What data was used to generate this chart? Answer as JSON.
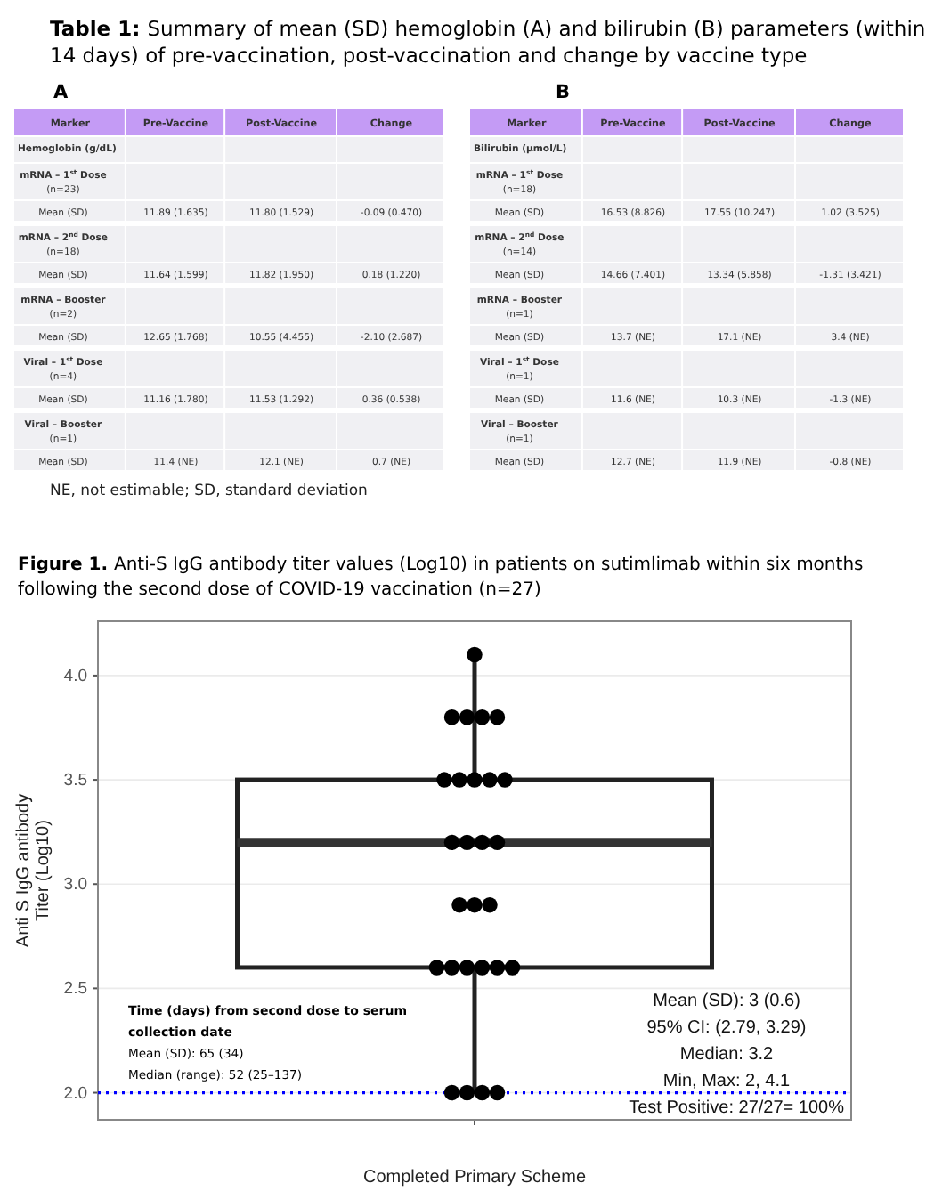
{
  "chart_data": [
    {
      "type": "other",
      "title": "Table 1: Summary of mean (SD) hemoglobin (A) and bilirubin (B) parameters (within 14 days) of pre-vaccination, post-vaccination and change by vaccine type",
      "subtitle": "A",
      "categories": [
        "Marker",
        "Pre-Vaccine",
        "Post-Vaccine",
        "Change"
      ],
      "y_categories": [
        "Hemoglobin (g/dL)",
        "mRNA – 1$^{st}$ Dose\n(n=23)",
        "Mean (SD)",
        "mRNA – 2$^{nd}$ Dose\n(n=18)",
        "Mean (SD)",
        "mRNA – Booster\n(n=2)",
        "Mean (SD)",
        "Viral – 1$^{st}$ Dose\n(n=4)",
        "Mean (SD)",
        "Viral – Booster\n(n=1)",
        "Mean (SD)"
      ],
      "cell_labels": [
        [
          null,
          null,
          null
        ],
        [
          null,
          null,
          null
        ],
        [
          "11.89 (1.635)",
          "11.80 (1.529)",
          "-0.09 (0.470)"
        ],
        [
          null,
          null,
          null
        ],
        [
          "11.64 (1.599)",
          "11.82 (1.950)",
          "0.18 (1.220)"
        ],
        [
          null,
          null,
          null
        ],
        [
          "12.65 (1.768)",
          "10.55 (4.455)",
          "-2.10 (2.687)"
        ],
        [
          null,
          null,
          null
        ],
        [
          "11.16 (1.780)",
          "11.53 (1.292)",
          "0.36 (0.538)"
        ],
        [
          null,
          null,
          null
        ],
        [
          "11.4 (NE)",
          "12.1 (NE)",
          "0.7 (NE)"
        ]
      ],
      "annotations": [
        "NE, not estimable; SD, standard deviation"
      ]
    },
    {
      "type": "other",
      "subtitle": "B",
      "categories": [
        "Marker",
        "Pre-Vaccine",
        "Post-Vaccine",
        "Change"
      ],
      "y_categories": [
        "Bilirubin (µmol/L)",
        "mRNA – 1$^{st}$ Dose\n(n=18)",
        "Mean (SD)",
        "mRNA – 2$^{nd}$ Dose\n(n=14)",
        "Mean (SD)",
        "mRNA – Booster\n(n=1)",
        "Mean (SD)",
        "Viral – 1$^{st}$ Dose\n(n=1)",
        "Mean (SD)",
        "Viral – Booster\n(n=1)",
        "Mean (SD)"
      ],
      "cell_labels": [
        [
          null,
          null,
          null
        ],
        [
          null,
          null,
          null
        ],
        [
          "16.53 (8.826)",
          "17.55 (10.247)",
          "1.02 (3.525)"
        ],
        [
          null,
          null,
          null
        ],
        [
          "14.66 (7.401)",
          "13.34 (5.858)",
          "-1.31 (3.421)"
        ],
        [
          null,
          null,
          null
        ],
        [
          "13.7 (NE)",
          "17.1 (NE)",
          "3.4 (NE)"
        ],
        [
          null,
          null,
          null
        ],
        [
          "11.6 (NE)",
          "10.3 (NE)",
          "-1.3 (NE)"
        ],
        [
          null,
          null,
          null
        ],
        [
          "12.7 (NE)",
          "11.9 (NE)",
          "-0.8 (NE)"
        ]
      ]
    },
    {
      "type": "box",
      "title": "Figure 1. Anti-S IgG antibody titer values (Log10) in patients on sutimlimab within six months following the second dose of COVID-19 vaccination (n=27)",
      "xlabel": "Completed Primary Scheme",
      "ylabel": "Anti S IgG antibody\nTiter (Log10)",
      "categories": [
        null
      ],
      "boxes": [
        {
          "low": 2.0,
          "q1": 2.6,
          "median": 3.2,
          "q3": 3.5,
          "high": 4.1
        }
      ],
      "series": [
        {
          "type": "scatter",
          "color": "#000000",
          "x": [
            null,
            null,
            null,
            null,
            null,
            null,
            null,
            null,
            null,
            null,
            null,
            null,
            null,
            null,
            null,
            null,
            null,
            null,
            null,
            null,
            null,
            null,
            null,
            null,
            null,
            null,
            null
          ],
          "values": [
            4.1,
            3.8,
            3.8,
            3.8,
            3.8,
            3.5,
            3.5,
            3.5,
            3.5,
            3.5,
            3.2,
            3.2,
            3.2,
            3.2,
            2.9,
            2.9,
            2.9,
            2.6,
            2.6,
            2.6,
            2.6,
            2.6,
            2.6,
            2.0,
            2.0,
            2.0,
            2.0
          ]
        }
      ],
      "ylim": [
        1.87,
        4.26
      ],
      "yticks": [
        {
          "value": 2,
          "label": "2.0"
        },
        {
          "value": 2.5,
          "label": "2.5"
        },
        {
          "value": 3,
          "label": "3.0"
        },
        {
          "value": 3.5,
          "label": "3.5"
        },
        {
          "value": 4,
          "label": "4.0"
        }
      ],
      "grid": "y",
      "marker": "circle",
      "ref_lines": [
        {
          "axis": "y",
          "value": 2.0,
          "color": "#0000ff",
          "line_style": "dotted"
        }
      ],
      "annotations": [
        "Time (days) from second dose to serum collection date",
        "Mean (SD): 65 (34)",
        "Median (range): 52 (25–137)",
        "Mean (SD): 3 (0.6)",
        "95% CI: (2.79, 3.29)",
        "Median: 3.2",
        "Min, Max: 2, 4.1",
        "Test Positive: 27/27= 100%"
      ]
    }
  ]
}
